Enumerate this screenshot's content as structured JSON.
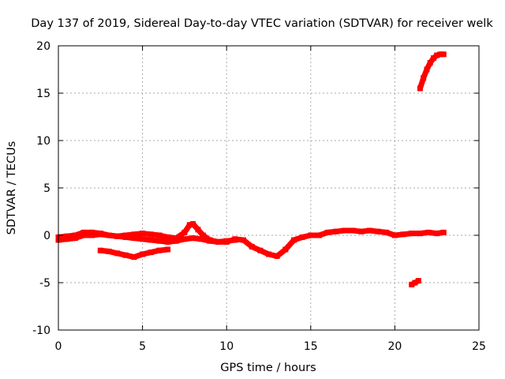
{
  "chart_data": {
    "type": "scatter",
    "title": "Day 137 of 2019, Sidereal Day-to-day VTEC variation (SDTVAR) for receiver welk",
    "xlabel": "GPS time / hours",
    "ylabel": "SDTVAR / TECUs",
    "xlim": [
      0,
      25
    ],
    "ylim": [
      -10,
      20
    ],
    "xticks": [
      0,
      5,
      10,
      15,
      20,
      25
    ],
    "yticks": [
      -10,
      -5,
      0,
      5,
      10,
      15,
      20
    ],
    "grid": true,
    "legend": "none",
    "point_color": "#ff0000",
    "series": [
      {
        "name": "trace-1",
        "x": [
          0.0,
          0.5,
          1.0,
          1.5,
          2.0,
          2.5,
          3.0,
          3.5,
          4.0,
          4.5,
          5.0,
          5.5,
          6.0,
          6.5,
          7.0,
          7.5,
          7.8,
          8.0,
          8.3,
          8.6,
          9.0,
          9.5,
          10.0,
          10.5,
          11.0,
          11.5,
          12.0,
          12.5,
          13.0,
          13.5,
          14.0,
          14.5,
          15.0,
          15.5,
          16.0,
          16.5,
          17.0,
          17.5,
          18.0,
          18.5,
          19.0,
          19.5,
          20.0,
          20.5,
          21.0,
          21.5,
          22.0,
          22.5,
          22.9
        ],
        "y": [
          -0.5,
          -0.4,
          -0.3,
          0.0,
          0.0,
          0.1,
          0.0,
          -0.1,
          0.0,
          0.1,
          0.2,
          0.1,
          0.0,
          -0.2,
          -0.3,
          0.3,
          1.1,
          1.2,
          0.6,
          0.0,
          -0.5,
          -0.7,
          -0.7,
          -0.4,
          -0.5,
          -1.2,
          -1.6,
          -2.0,
          -2.2,
          -1.5,
          -0.5,
          -0.2,
          0.0,
          0.0,
          0.3,
          0.4,
          0.5,
          0.5,
          0.4,
          0.5,
          0.4,
          0.3,
          0.0,
          0.1,
          0.2,
          0.2,
          0.3,
          0.2,
          0.3
        ]
      },
      {
        "name": "trace-2",
        "x": [
          0.0,
          0.5,
          1.0,
          1.5,
          2.0,
          2.5,
          3.0,
          3.5,
          4.0,
          4.5,
          5.0,
          5.5,
          6.0,
          6.5,
          7.0,
          7.5,
          8.0,
          8.5,
          9.0,
          9.5,
          10.0,
          10.5
        ],
        "y": [
          -0.2,
          -0.1,
          0.0,
          0.3,
          0.3,
          0.2,
          0.0,
          -0.1,
          -0.2,
          -0.3,
          -0.4,
          -0.5,
          -0.6,
          -0.7,
          -0.6,
          -0.4,
          -0.3,
          -0.4,
          -0.6,
          -0.7,
          -0.6,
          -0.5
        ]
      },
      {
        "name": "trace-3",
        "x": [
          2.5,
          3.0,
          3.5,
          4.0,
          4.5,
          5.0,
          5.5,
          6.0,
          6.5
        ],
        "y": [
          -1.6,
          -1.7,
          -1.9,
          -2.1,
          -2.3,
          -2.0,
          -1.8,
          -1.6,
          -1.5
        ]
      },
      {
        "name": "trace-4",
        "x": [
          21.0,
          21.2,
          21.4
        ],
        "y": [
          -5.2,
          -5.0,
          -4.8
        ]
      },
      {
        "name": "trace-5",
        "x": [
          21.5,
          21.7,
          21.9,
          22.1,
          22.3,
          22.5,
          22.7,
          22.9
        ],
        "y": [
          15.5,
          16.6,
          17.5,
          18.2,
          18.7,
          19.0,
          19.1,
          19.1
        ]
      }
    ]
  }
}
